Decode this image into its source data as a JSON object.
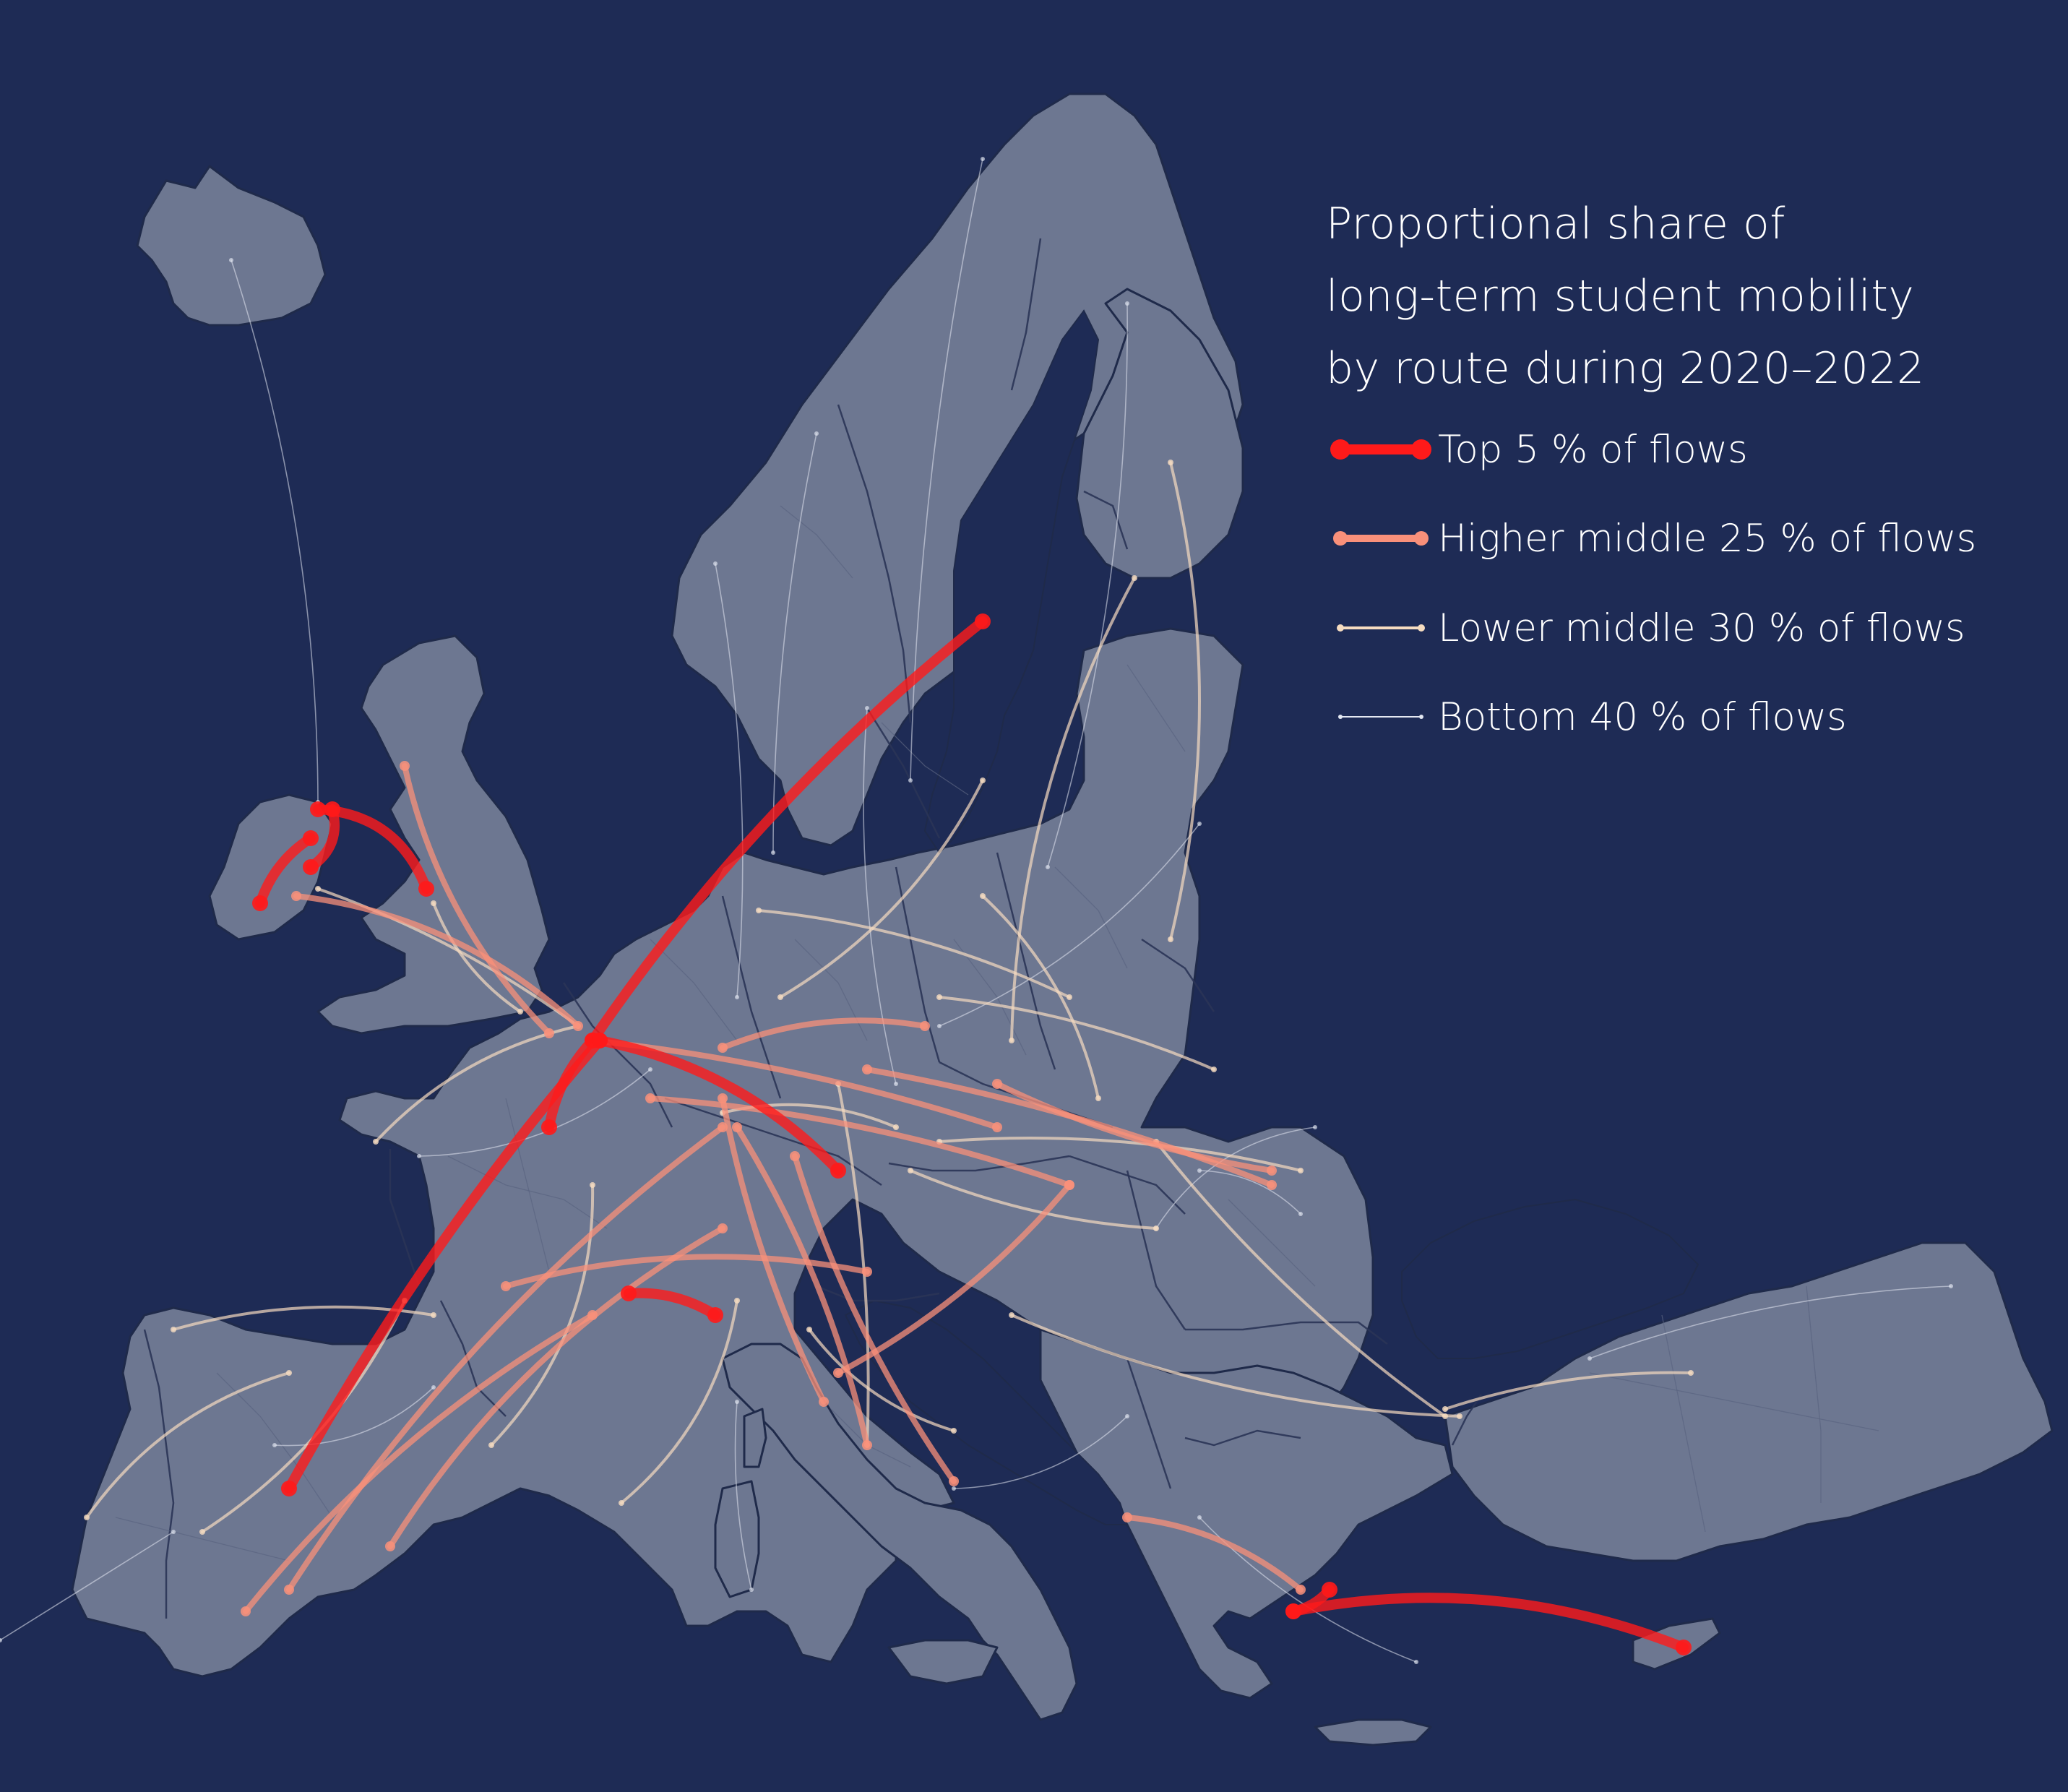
{
  "legend": {
    "title": "Proportional share of\nlong-term student mobility\nby route during 2020–2022",
    "items": [
      {
        "label": "Top 5 % of flows",
        "color": "#ff1a1a",
        "class": "top"
      },
      {
        "label": "Higher middle 25 % of flows",
        "color": "#f9907a",
        "class": "higher"
      },
      {
        "label": "Lower middle 30 % of flows",
        "color": "#f6dcc0",
        "class": "lower"
      },
      {
        "label": "Bottom 40 % of flows",
        "color": "#e4e8f2",
        "class": "bottom"
      }
    ]
  },
  "colors": {
    "sea": "#1e2b55",
    "land": "#6d7791",
    "border": "#1f2a4a",
    "top": "#ff1a1a",
    "higher": "#f9907a",
    "lower": "#f6dcc0",
    "bottom": "#e4e8f2"
  }
}
